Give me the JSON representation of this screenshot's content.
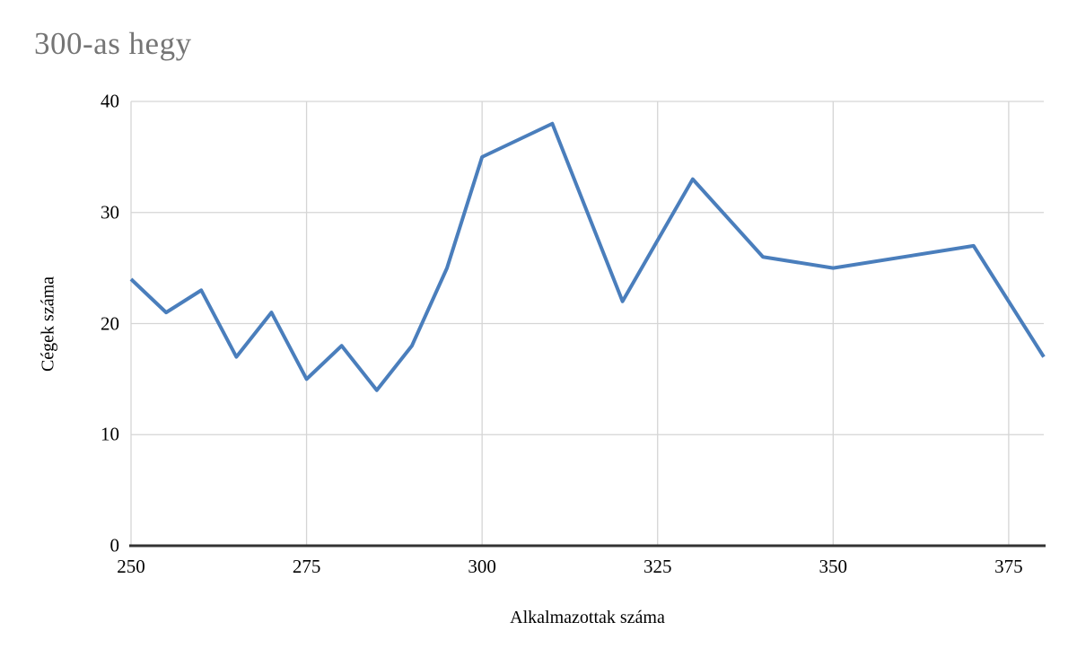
{
  "chart_data": {
    "type": "line",
    "title": "300-as hegy",
    "xlabel": "Alkalmazottak száma",
    "ylabel": "Cégek száma",
    "x": [
      250,
      255,
      260,
      265,
      270,
      275,
      280,
      285,
      290,
      295,
      300,
      310,
      320,
      330,
      340,
      350,
      370,
      380
    ],
    "series": [
      {
        "name": "Cégek száma",
        "values": [
          24,
          21,
          23,
          17,
          21,
          15,
          18,
          14,
          18,
          25,
          35,
          38,
          22,
          33,
          26,
          25,
          27,
          17
        ]
      }
    ],
    "xlim": [
      250,
      380
    ],
    "ylim": [
      0,
      40
    ],
    "x_ticks": [
      250,
      275,
      300,
      325,
      350,
      375
    ],
    "y_ticks": [
      0,
      10,
      20,
      30,
      40
    ],
    "grid": true,
    "legend_position": "none",
    "colors": {
      "line": "#4a7ebc",
      "grid": "#d5d5d5",
      "axis": "#333333",
      "title": "#757575",
      "tick_text": "#000000"
    }
  }
}
